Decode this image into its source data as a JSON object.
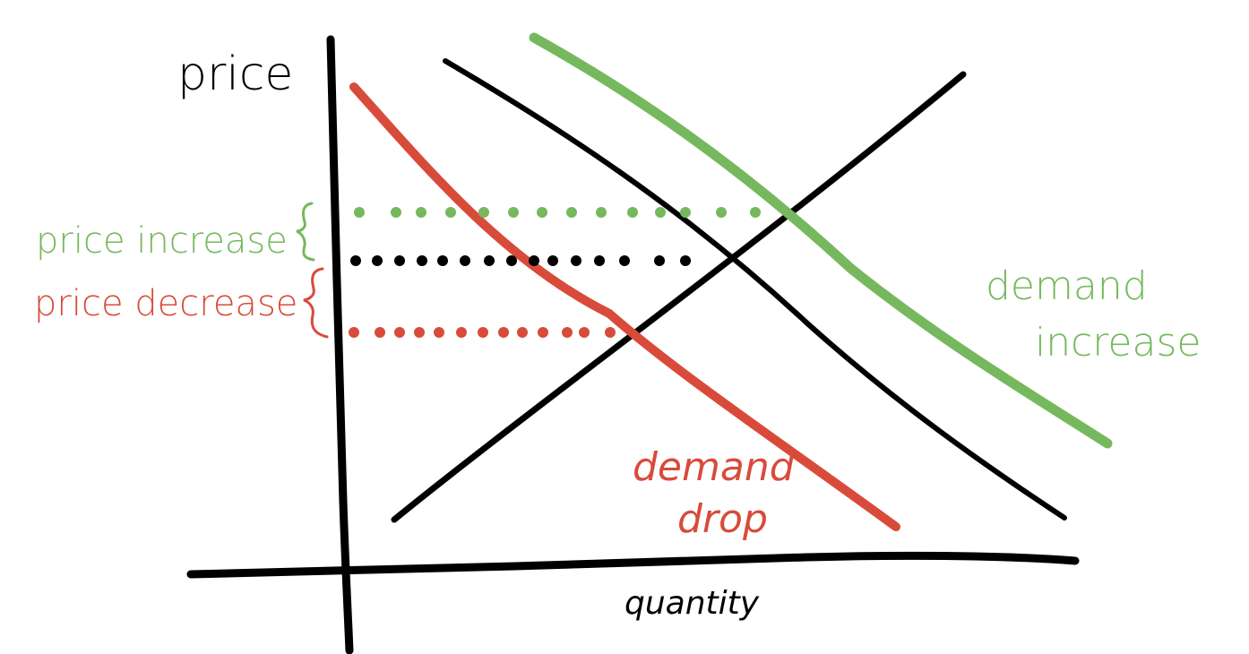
{
  "labels": {
    "price_axis": "price",
    "quantity_axis": "quantity",
    "price_increase": "price increase",
    "price_decrease": "price decrease",
    "demand_increase_line1": "demand",
    "demand_increase_line2": "increase",
    "demand_drop_line1": "demand",
    "demand_drop_line2": "drop"
  },
  "colors": {
    "ink": "#000000",
    "increase": "#76b85e",
    "decrease": "#d84b3a",
    "background": "#ffffff"
  }
}
